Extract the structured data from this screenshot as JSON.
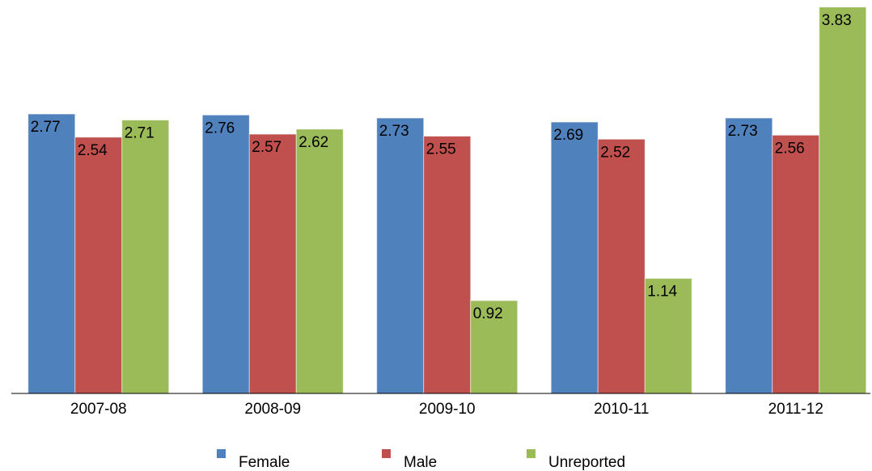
{
  "chart_data": {
    "type": "bar",
    "categories": [
      "2007-08",
      "2008-09",
      "2009-10",
      "2010-11",
      "2011-12"
    ],
    "series": [
      {
        "name": "Female",
        "color": "#4f81bd",
        "values": [
          2.77,
          2.76,
          2.73,
          2.69,
          2.73
        ]
      },
      {
        "name": "Male",
        "color": "#c0504d",
        "values": [
          2.54,
          2.57,
          2.55,
          2.52,
          2.56
        ]
      },
      {
        "name": "Unreported",
        "color": "#9bbb59",
        "values": [
          2.71,
          2.62,
          0.92,
          1.14,
          3.83
        ]
      }
    ],
    "ylim": [
      0,
      3.9
    ]
  }
}
